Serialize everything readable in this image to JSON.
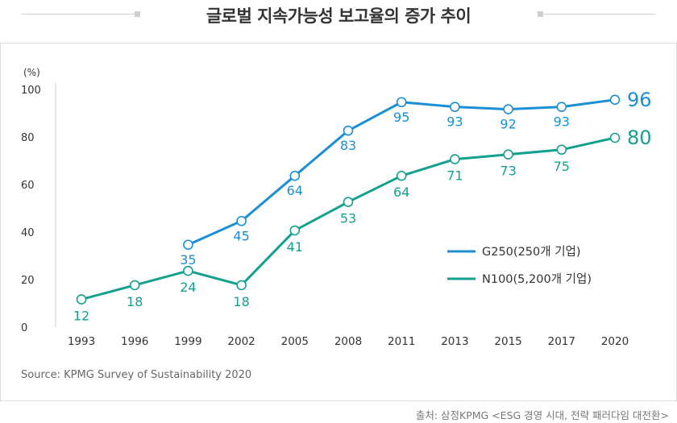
{
  "title": "글로벌 지속가능성 보고율의 증가 추이",
  "source": "Source: KPMG Survey of Sustainability 2020",
  "credit": "출처: 삼정KPMG <ESG 경영 시대, 전략 패러다임 대전환>",
  "chart_data": {
    "type": "line",
    "title": "글로벌 지속가능성 보고율의 증가 추이",
    "ylabel": "(%)",
    "xlabel": "",
    "categories": [
      "1993",
      "1996",
      "1999",
      "2002",
      "2005",
      "2008",
      "2011",
      "2013",
      "2015",
      "2017",
      "2020"
    ],
    "ylim": [
      0,
      100
    ],
    "yticks": [
      0,
      20,
      40,
      60,
      80,
      100
    ],
    "grid": false,
    "legend_position": "center-right",
    "series": [
      {
        "name": "G250(250개 기업)",
        "color": "#1a8fd6",
        "values": [
          null,
          null,
          35,
          45,
          64,
          83,
          95,
          93,
          92,
          93,
          96
        ]
      },
      {
        "name": "N100(5,200개 기업)",
        "color": "#13a08e",
        "values": [
          12,
          18,
          24,
          18,
          41,
          53,
          64,
          71,
          73,
          75,
          80
        ]
      }
    ]
  }
}
